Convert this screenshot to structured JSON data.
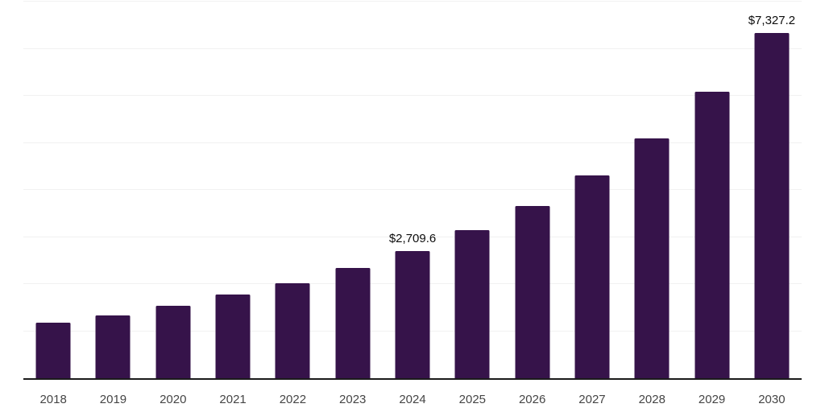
{
  "chart_data": {
    "type": "bar",
    "title": "",
    "xlabel": "",
    "ylabel": "",
    "categories": [
      "2018",
      "2019",
      "2020",
      "2021",
      "2022",
      "2023",
      "2024",
      "2025",
      "2026",
      "2027",
      "2028",
      "2029",
      "2030"
    ],
    "values": [
      1180,
      1340,
      1540,
      1770,
      2025,
      2340,
      2709.6,
      3140,
      3660,
      4310,
      5100,
      6090,
      7327.2
    ],
    "data_labels": [
      null,
      null,
      null,
      null,
      null,
      null,
      "$2,709.6",
      null,
      null,
      null,
      null,
      null,
      "$7,327.2"
    ],
    "ylim": [
      0,
      8000
    ],
    "gridline_step": 1000,
    "grid": true,
    "legend": "none"
  },
  "colors": {
    "bar": "#36134A",
    "gridline": "#f1f1f1",
    "axis_line": "#1b1b1b",
    "value_label": "#0d0d0d",
    "tick_label": "#454545",
    "background": "#ffffff"
  }
}
